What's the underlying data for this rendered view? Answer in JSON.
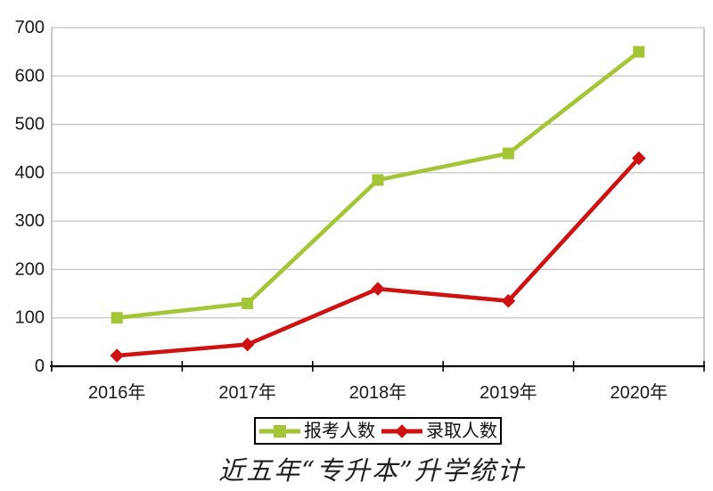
{
  "chart_data": {
    "type": "line",
    "title": "近五年“专升本”升学统计",
    "categories": [
      "2016年",
      "2017年",
      "2018年",
      "2019年",
      "2020年"
    ],
    "series": [
      {
        "name": "报考人数",
        "values": [
          100,
          130,
          385,
          440,
          650
        ],
        "color": "#A4C636",
        "marker": "square"
      },
      {
        "name": "录取人数",
        "values": [
          22,
          45,
          160,
          135,
          430
        ],
        "color": "#CE1212",
        "marker": "diamond"
      }
    ],
    "ylim": [
      0,
      700
    ],
    "yticks": [
      0,
      100,
      200,
      300,
      400,
      500,
      600,
      700
    ],
    "xlabel": "",
    "ylabel": "",
    "grid": "horizontal",
    "legend_position": "bottom",
    "colors": {
      "axis": "#000000",
      "gridline": "#c4c4c4",
      "plot_border": "#aaaaaa",
      "tick_label": "#1a1a1a",
      "title_text": "#1f1f1f",
      "legend_border": "#000000",
      "background": "#ffffff"
    }
  }
}
